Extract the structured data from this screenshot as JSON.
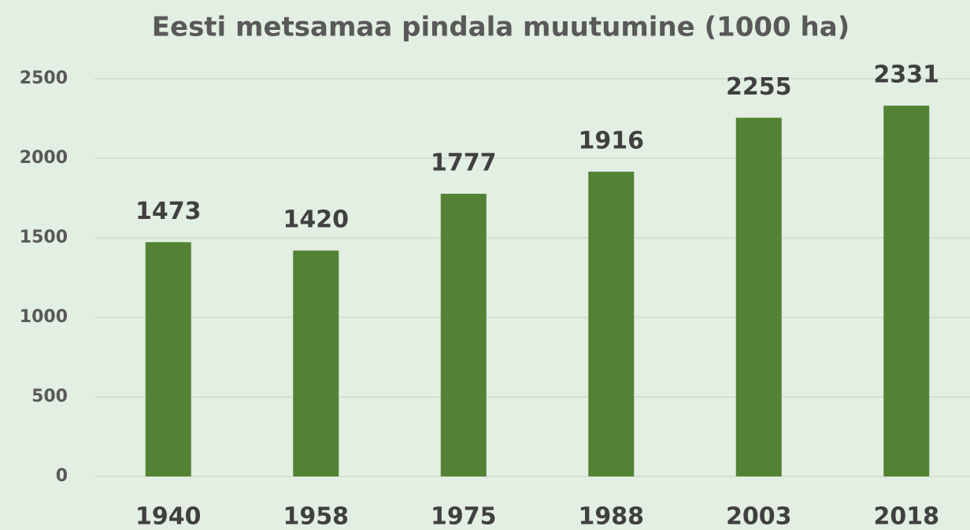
{
  "chart_data": {
    "type": "bar",
    "title": "Eesti metsamaa pindala muutumine (1000 ha)",
    "categories": [
      "1940",
      "1958",
      "1975",
      "1988",
      "2003",
      "2018"
    ],
    "values": [
      1473,
      1420,
      1777,
      1916,
      2255,
      2331
    ],
    "color": "#548235",
    "ylim": [
      0,
      2500
    ],
    "yticks": [
      0,
      500,
      1000,
      1500,
      2000,
      2500
    ],
    "grid": true
  }
}
